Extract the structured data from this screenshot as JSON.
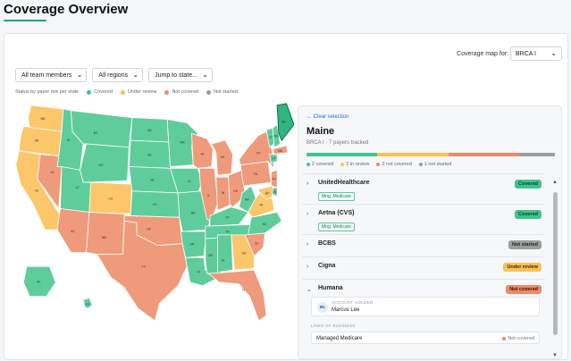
{
  "page": {
    "title": "Coverage Overview"
  },
  "coverage_map": {
    "label": "Coverage map for:",
    "selected": "BRCA I"
  },
  "filters": [
    "All team members",
    "All regions",
    "Jump to state..."
  ],
  "legend": {
    "intro": "Status by payer mix per state",
    "items": [
      {
        "label": "Covered",
        "color": "#3ec48e"
      },
      {
        "label": "Under review",
        "color": "#f7c15a"
      },
      {
        "label": "Not covered",
        "color": "#ee8a69"
      },
      {
        "label": "Not started",
        "color": "#9b9e9c"
      }
    ]
  },
  "colors": {
    "covered": "#5fcc9c",
    "review": "#fbc76a",
    "notcovered": "#ef9a7a",
    "selected": "#2fb57f",
    "border": "#ffffff"
  },
  "map": {
    "states": [
      {
        "abbr": "WA",
        "status": "review"
      },
      {
        "abbr": "OR",
        "status": "review"
      },
      {
        "abbr": "CA",
        "status": "review"
      },
      {
        "abbr": "ID",
        "status": "covered"
      },
      {
        "abbr": "NV",
        "status": "notcovered"
      },
      {
        "abbr": "UT",
        "status": "covered"
      },
      {
        "abbr": "AZ",
        "status": "notcovered"
      },
      {
        "abbr": "MT",
        "status": "covered"
      },
      {
        "abbr": "WY",
        "status": "covered"
      },
      {
        "abbr": "CO",
        "status": "review"
      },
      {
        "abbr": "NM",
        "status": "notcovered"
      },
      {
        "abbr": "ND",
        "status": "covered"
      },
      {
        "abbr": "SD",
        "status": "covered"
      },
      {
        "abbr": "NE",
        "status": "covered"
      },
      {
        "abbr": "KS",
        "status": "covered"
      },
      {
        "abbr": "OK",
        "status": "notcovered"
      },
      {
        "abbr": "TX",
        "status": "notcovered"
      },
      {
        "abbr": "MN",
        "status": "covered"
      },
      {
        "abbr": "IA",
        "status": "covered"
      },
      {
        "abbr": "MO",
        "status": "covered"
      },
      {
        "abbr": "AR",
        "status": "covered"
      },
      {
        "abbr": "LA",
        "status": "covered"
      },
      {
        "abbr": "WI",
        "status": "notcovered"
      },
      {
        "abbr": "IL",
        "status": "notcovered"
      },
      {
        "abbr": "MS",
        "status": "covered"
      },
      {
        "abbr": "MI",
        "status": "notcovered"
      },
      {
        "abbr": "IN",
        "status": "notcovered"
      },
      {
        "abbr": "KY",
        "status": "covered"
      },
      {
        "abbr": "TN",
        "status": "covered"
      },
      {
        "abbr": "AL",
        "status": "covered"
      },
      {
        "abbr": "GA",
        "status": "review"
      },
      {
        "abbr": "FL",
        "status": "notcovered"
      },
      {
        "abbr": "OH",
        "status": "notcovered"
      },
      {
        "abbr": "WV",
        "status": "covered"
      },
      {
        "abbr": "VA",
        "status": "review"
      },
      {
        "abbr": "NC",
        "status": "covered"
      },
      {
        "abbr": "SC",
        "status": "notcovered"
      },
      {
        "abbr": "PA",
        "status": "notcovered"
      },
      {
        "abbr": "NY",
        "status": "notcovered"
      },
      {
        "abbr": "VT",
        "status": "covered"
      },
      {
        "abbr": "NH",
        "status": "covered"
      },
      {
        "abbr": "ME",
        "status": "selected"
      },
      {
        "abbr": "MA",
        "status": "notcovered"
      },
      {
        "abbr": "CT",
        "status": "covered"
      },
      {
        "abbr": "NJ",
        "status": "notcovered"
      },
      {
        "abbr": "DE",
        "status": "covered"
      },
      {
        "abbr": "MD",
        "status": "review"
      },
      {
        "abbr": "AK",
        "status": "covered"
      },
      {
        "abbr": "HI",
        "status": "covered"
      }
    ]
  },
  "panel": {
    "clear": "← Clear selection",
    "state": "Maine",
    "subtitle": "BRCA I · 7 payers tracked",
    "mix": [
      {
        "count": 2,
        "color": "#3ec48e"
      },
      {
        "count": 2,
        "color": "#f7c15a"
      },
      {
        "count": 2,
        "color": "#ee8a69"
      },
      {
        "count": 1,
        "color": "#9b9e9c"
      }
    ],
    "counts": [
      "2 covered",
      "2 in review",
      "2 not covered",
      "1 not started"
    ],
    "payers": [
      {
        "chev": "›",
        "name": "UnitedHealthcare",
        "tag": "Mng. Medicare",
        "status": "Covered",
        "cls": "b-cov"
      },
      {
        "chev": "›",
        "name": "Aetna (CVS)",
        "tag": "Mng. Medicare",
        "status": "Covered",
        "cls": "b-cov"
      },
      {
        "chev": "›",
        "name": "BCBS",
        "tag": "",
        "status": "Not started",
        "cls": "b-ns"
      },
      {
        "chev": "›",
        "name": "Cigna",
        "tag": "",
        "status": "Under review",
        "cls": "b-ur"
      },
      {
        "chev": "⌄",
        "name": "Humana",
        "tag": "",
        "status": "Not covered",
        "cls": "b-nc"
      }
    ],
    "holder": {
      "initials": "ML",
      "label": "ACCOUNT HOLDER",
      "name": "Marcus Lee"
    },
    "lob_title": "LINES OF BUSINESS",
    "lob": {
      "name": "Managed Medicare",
      "status": "Not covered",
      "color": "#ee8a69"
    }
  }
}
